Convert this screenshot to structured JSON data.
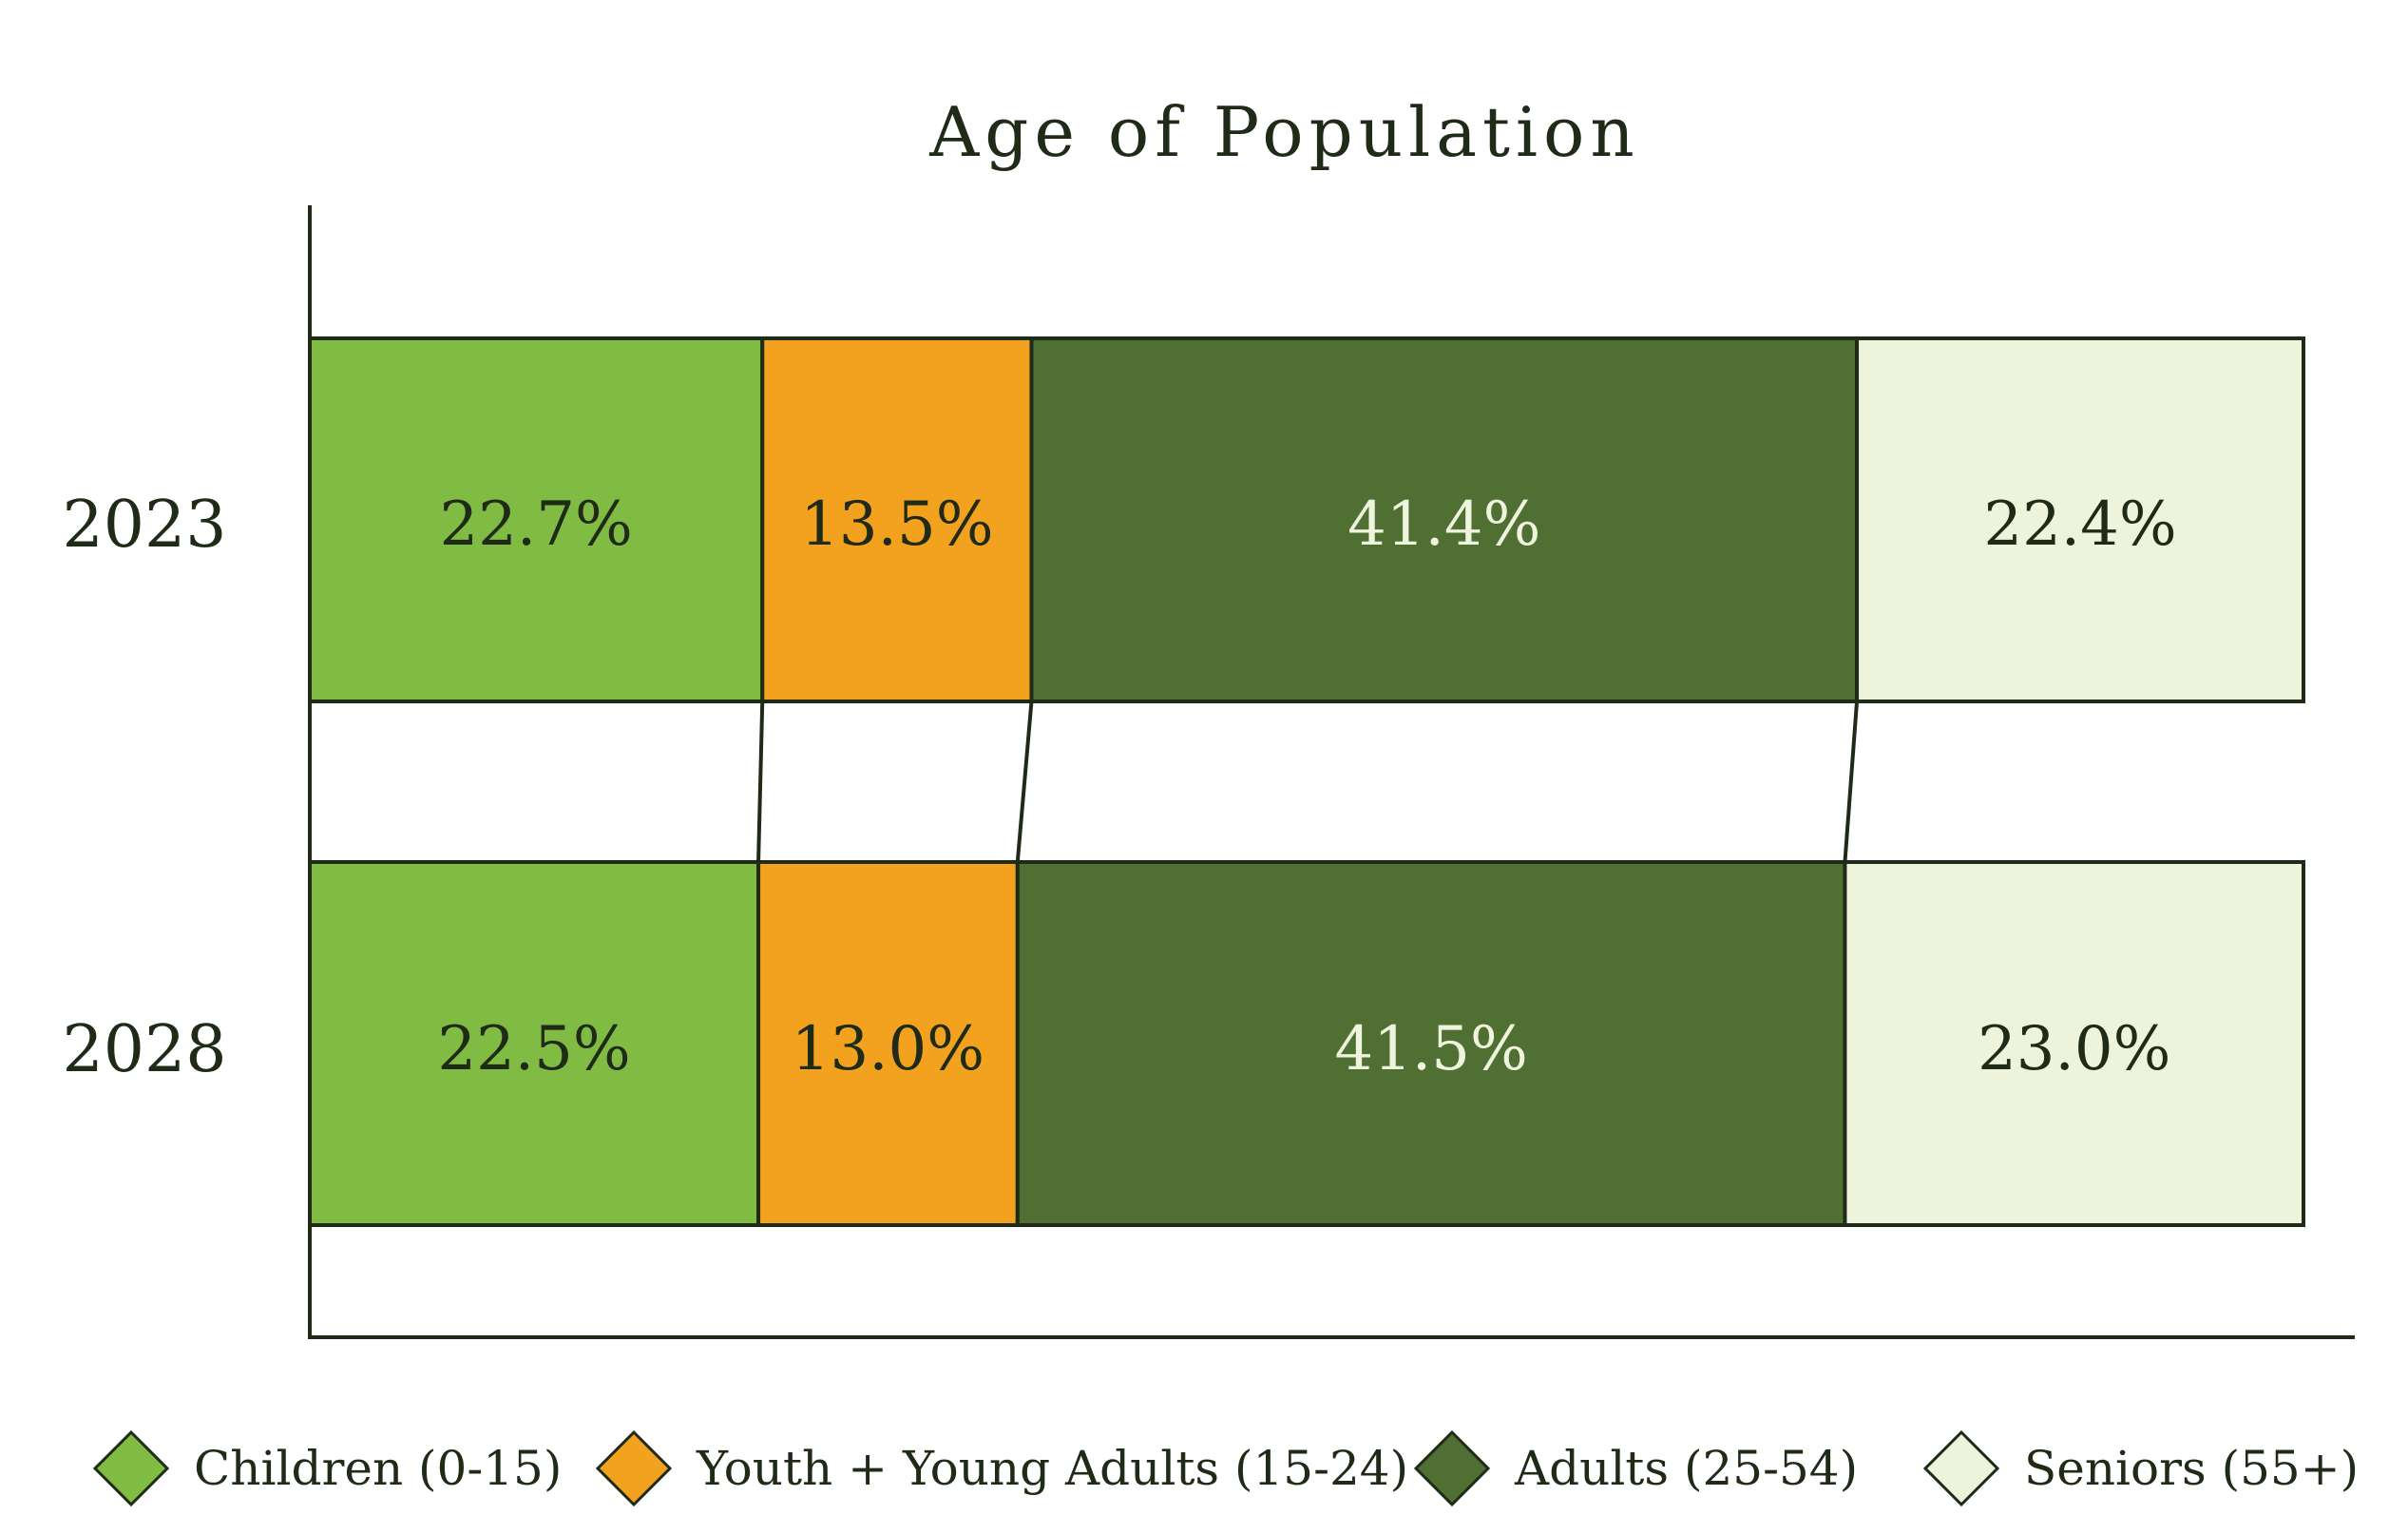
{
  "chart_data": {
    "type": "bar",
    "orientation": "horizontal-stacked-100",
    "title": "Age of Population",
    "xlabel": "",
    "ylabel": "",
    "xlim": [
      0,
      100
    ],
    "categories": [
      "2023",
      "2028"
    ],
    "series": [
      {
        "name": "Children (0-15)",
        "color": "#80bb43",
        "text_color": "#1f2a17",
        "values": [
          22.7,
          22.5
        ],
        "labels": [
          "22.7%",
          "22.5%"
        ]
      },
      {
        "name": "Youth + Young Adults (15-24)",
        "color": "#f2a21f",
        "text_color": "#1f2a17",
        "values": [
          13.5,
          13.0
        ],
        "labels": [
          "13.5%",
          "13.0%"
        ]
      },
      {
        "name": "Adults (25-54)",
        "color": "#507033",
        "text_color": "#eef4dd",
        "values": [
          41.4,
          41.5
        ],
        "labels": [
          "41.4%",
          "41.5%"
        ]
      },
      {
        "name": "Seniors (55+)",
        "color": "#eef4dc",
        "text_color": "#1f2a17",
        "values": [
          22.4,
          23.0
        ],
        "labels": [
          "22.4%",
          "23.0%"
        ]
      }
    ],
    "legend_position": "bottom",
    "connector_lines": true,
    "grid": false
  },
  "colors": {
    "outline": "#1f2a17",
    "axis": "#1f2a17",
    "background": "#ffffff"
  }
}
